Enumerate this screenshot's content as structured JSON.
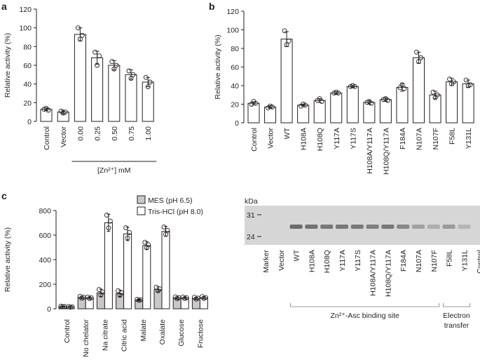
{
  "figure": {
    "panel_letters": [
      "a",
      "b",
      "c"
    ],
    "panel_a_group_label": "[Zn²⁺] mM",
    "panel_c_legend": [
      {
        "label": "MES (pH 6.5)",
        "color": "#c8c8c8"
      },
      {
        "label": "Tris-HCl (pH 8.0)",
        "color": "#ffffff"
      }
    ],
    "gel": {
      "kda_label": "kDa",
      "markers": [
        "31",
        "24"
      ],
      "lanes": [
        "Marker",
        "Vector",
        "WT",
        "H108A",
        "H108Q",
        "Y117A",
        "Y117S",
        "H108A/Y117A",
        "H108Q/Y117A",
        "F184A",
        "N107A",
        "N107F",
        "F58L",
        "Y131L",
        "Control"
      ],
      "band_intensity": [
        0,
        0,
        0.95,
        0.9,
        0.85,
        0.85,
        0.85,
        0.8,
        0.85,
        0.75,
        0.55,
        0.45,
        0.6,
        0.4,
        0
      ],
      "group_labels": [
        "Zn²⁺-Asc binding site",
        "Electron transfer"
      ]
    }
  },
  "chart_data": [
    {
      "type": "bar",
      "title": "",
      "ylabel": "Relative activity (%)",
      "ylim": [
        0,
        120
      ],
      "yticks": [
        0,
        20,
        40,
        60,
        80,
        100,
        120
      ],
      "categories": [
        "Control",
        "Vector",
        "0.00",
        "0.25",
        "0.50",
        "0.75",
        "1.00"
      ],
      "values": [
        13,
        10,
        93,
        68,
        60,
        50,
        42
      ],
      "errors": [
        1.5,
        2,
        7,
        7,
        5,
        5,
        5
      ],
      "points": [
        [
          13,
          14,
          12
        ],
        [
          11,
          9,
          10
        ],
        [
          100,
          88,
          92
        ],
        [
          74,
          60,
          70
        ],
        [
          64,
          56,
          60
        ],
        [
          54,
          46,
          50
        ],
        [
          47,
          37,
          42
        ]
      ],
      "group_label": "[Zn²⁺] mM"
    },
    {
      "type": "bar",
      "title": "",
      "ylabel": "Relative activity (%)",
      "ylim": [
        0,
        120
      ],
      "yticks": [
        0,
        20,
        40,
        60,
        80,
        100,
        120
      ],
      "categories": [
        "Control",
        "Vector",
        "WT",
        "H108A",
        "H108Q",
        "Y117A",
        "Y117S",
        "H108A/Y117A",
        "H108Q/Y117A",
        "F184A",
        "N107A",
        "N107F",
        "F58L",
        "Y131L"
      ],
      "values": [
        21,
        17,
        90,
        19,
        24,
        32,
        39,
        22,
        25,
        38,
        70,
        30,
        44,
        42
      ],
      "errors": [
        1.5,
        1.5,
        8,
        1,
        2,
        1.5,
        1,
        2,
        2,
        4,
        6,
        4,
        4,
        4
      ],
      "points": [
        [
          20,
          23,
          21
        ],
        [
          16,
          18,
          17
        ],
        [
          99,
          84,
          88
        ],
        [
          18,
          20,
          19
        ],
        [
          24,
          26,
          23
        ],
        [
          32,
          33,
          32
        ],
        [
          39,
          40,
          39
        ],
        [
          22,
          23,
          21
        ],
        [
          25,
          26,
          24
        ],
        [
          38,
          41,
          37
        ],
        [
          76,
          66,
          70
        ],
        [
          33,
          27,
          30
        ],
        [
          47,
          42,
          44
        ],
        [
          46,
          40,
          41
        ]
      ]
    },
    {
      "type": "bar",
      "title": "",
      "ylabel": "Relative activity (%)",
      "ylim": [
        0,
        800
      ],
      "yticks": [
        0,
        200,
        400,
        600,
        800
      ],
      "categories": [
        "Control",
        "No chelator",
        "Na citrate",
        "Citric acid",
        "Malate",
        "Oxalate",
        "Glucose",
        "Fructose"
      ],
      "series": [
        {
          "name": "MES (pH 6.5)",
          "values": [
            18,
            92,
            130,
            125,
            72,
            158,
            88,
            85
          ],
          "errors": [
            3,
            10,
            30,
            25,
            5,
            20,
            10,
            10
          ]
        },
        {
          "name": "Tris-HCl (pH 8.0)",
          "values": [
            15,
            88,
            700,
            610,
            515,
            630,
            88,
            90
          ],
          "errors": [
            3,
            8,
            70,
            55,
            30,
            40,
            8,
            10
          ]
        }
      ],
      "legend": "top-left"
    }
  ]
}
